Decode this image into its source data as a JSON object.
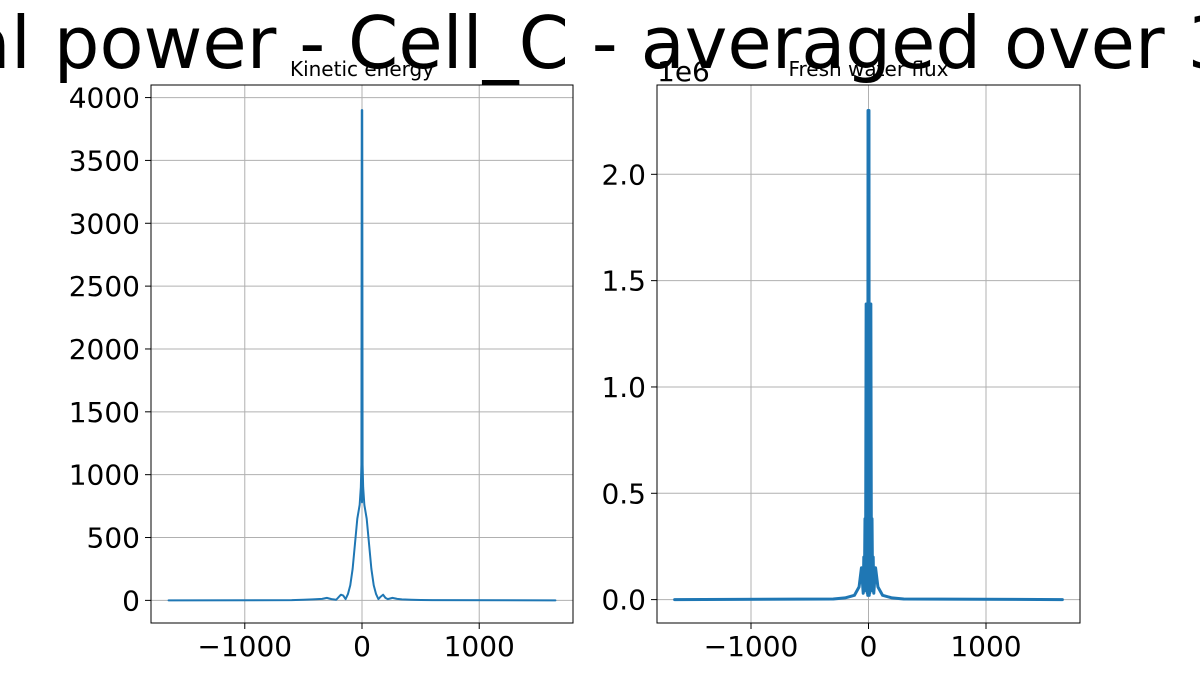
{
  "figure": {
    "suptitle": "al power - Cell_C - averaged over 3",
    "colors": {
      "series": "#1f77b4",
      "grid": "#b0b0b0",
      "frame": "#000000",
      "background": "#ffffff"
    }
  },
  "chart_data": [
    {
      "type": "line",
      "title": "Kinetic energy",
      "xlabel": "",
      "ylabel": "",
      "xlim": [
        -1800,
        1800
      ],
      "ylim": [
        -180,
        4100
      ],
      "xticks": [
        -1000,
        0,
        1000
      ],
      "xtick_labels": [
        "−1000",
        "0",
        "1000"
      ],
      "yticks": [
        0,
        500,
        1000,
        1500,
        2000,
        2500,
        3000,
        3500,
        4000
      ],
      "ytick_labels": [
        "0",
        "500",
        "1000",
        "1500",
        "2000",
        "2500",
        "3000",
        "3500",
        "4000"
      ],
      "y_offset_label": "",
      "grid": true,
      "legend": "none",
      "series": [
        {
          "x": [
            -1650,
            -600,
            -500,
            -420,
            -340,
            -300,
            -260,
            -220,
            -180,
            -160,
            -140,
            -120,
            -100,
            -80,
            -60,
            -40,
            -20,
            -10,
            -5,
            -2,
            0,
            2,
            5,
            10,
            20,
            40,
            60,
            80,
            100,
            120,
            140,
            160,
            180,
            200,
            220,
            260,
            300,
            340,
            420,
            500,
            600,
            1650
          ],
          "y": [
            0,
            2,
            5,
            8,
            12,
            20,
            10,
            5,
            45,
            38,
            10,
            50,
            120,
            250,
            450,
            650,
            760,
            900,
            1080,
            3900,
            780,
            3900,
            1080,
            900,
            760,
            650,
            450,
            250,
            120,
            50,
            10,
            30,
            45,
            20,
            10,
            20,
            12,
            8,
            5,
            3,
            2,
            0
          ]
        }
      ]
    },
    {
      "type": "line",
      "title": "Fresh water flux",
      "xlabel": "",
      "ylabel": "",
      "xlim": [
        -1800,
        1800
      ],
      "ylim": [
        -110000,
        2420000
      ],
      "xticks": [
        -1000,
        0,
        1000
      ],
      "xtick_labels": [
        "−1000",
        "0",
        "1000"
      ],
      "yticks": [
        0,
        500000,
        1000000,
        1500000,
        2000000
      ],
      "ytick_labels": [
        "0.0",
        "0.5",
        "1.0",
        "1.5",
        "2.0"
      ],
      "y_offset_label": "1e6",
      "grid": true,
      "legend": "none",
      "series": [
        {
          "x": [
            -1650,
            -300,
            -200,
            -120,
            -80,
            -60,
            -45,
            -40,
            -35,
            -30,
            -25,
            -20,
            -16,
            -12,
            -10,
            -8,
            -6,
            -4,
            -3,
            -2,
            -1,
            0,
            1,
            2,
            3,
            4,
            6,
            8,
            10,
            12,
            16,
            20,
            25,
            30,
            35,
            40,
            45,
            60,
            80,
            120,
            200,
            300,
            1650
          ],
          "y": [
            0,
            3000,
            8000,
            20000,
            60000,
            150000,
            30000,
            200000,
            40000,
            380000,
            50000,
            1390000,
            60000,
            1390000,
            30000,
            1390000,
            20000,
            2300000,
            100000,
            2300000,
            200000,
            1900000,
            200000,
            2300000,
            100000,
            2300000,
            20000,
            1390000,
            30000,
            1390000,
            60000,
            1390000,
            50000,
            380000,
            40000,
            200000,
            30000,
            150000,
            60000,
            20000,
            8000,
            3000,
            0
          ]
        }
      ]
    }
  ]
}
